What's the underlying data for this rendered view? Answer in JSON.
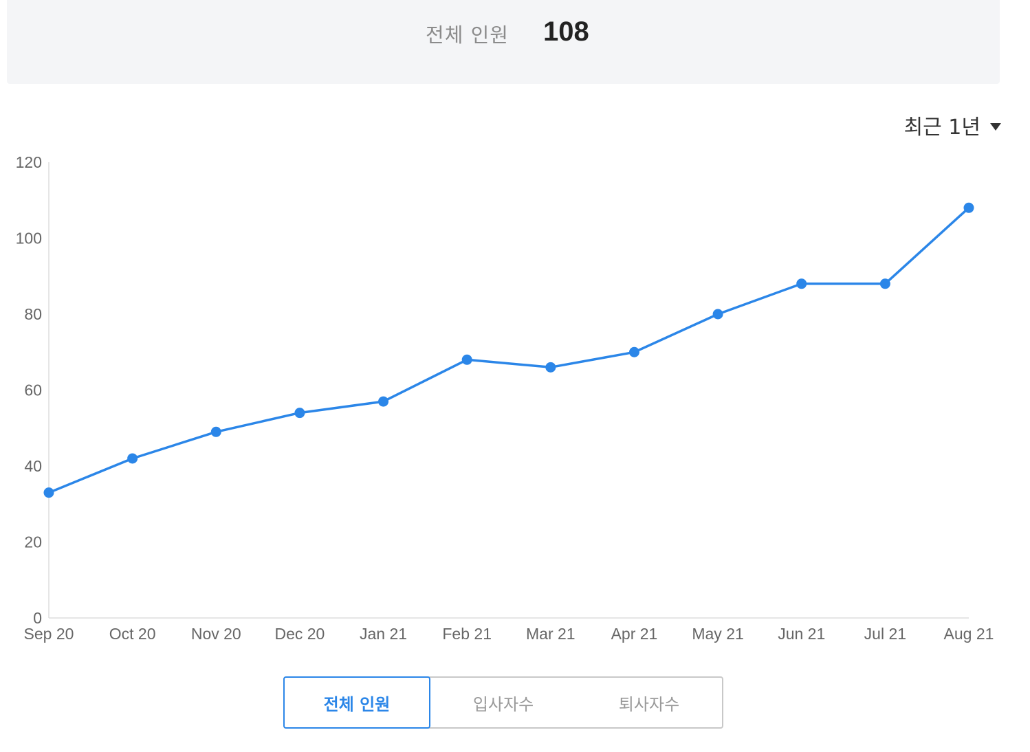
{
  "summary": {
    "label": "전체 인원",
    "value": "108"
  },
  "period_select": {
    "label": "최근 1년"
  },
  "tabs": [
    {
      "label": "전체 인원",
      "active": true
    },
    {
      "label": "입사자수",
      "active": false
    },
    {
      "label": "퇴사자수",
      "active": false
    }
  ],
  "colors": {
    "accent": "#2b86e8",
    "summary_bg": "#f4f5f7",
    "axis": "#dddddd"
  },
  "chart_data": {
    "type": "line",
    "categories": [
      "Sep 20",
      "Oct 20",
      "Nov 20",
      "Dec 20",
      "Jan 21",
      "Feb 21",
      "Mar 21",
      "Apr 21",
      "May 21",
      "Jun 21",
      "Jul 21",
      "Aug 21"
    ],
    "series": [
      {
        "values": [
          33,
          42,
          49,
          54,
          57,
          68,
          66,
          70,
          80,
          88,
          88,
          108
        ]
      }
    ],
    "yticks": [
      0,
      20,
      40,
      60,
      80,
      100,
      120
    ],
    "ylim": [
      0,
      120
    ],
    "grid": false,
    "markers": true
  }
}
